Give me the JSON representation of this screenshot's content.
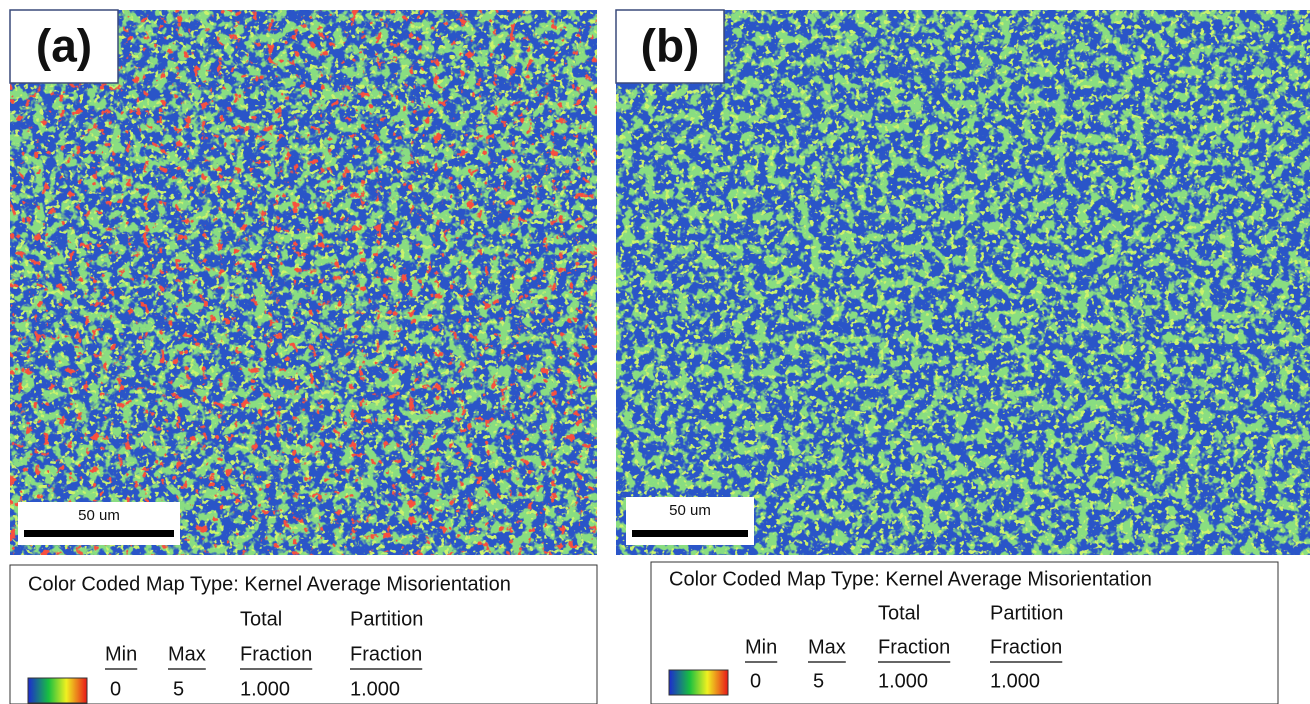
{
  "panels": [
    {
      "label": "(a)",
      "scale_bar": "50 um",
      "legend": {
        "title": "Color Coded Map Type: Kernel Average Misorientation",
        "header_top": [
          "Total",
          "Partition"
        ],
        "header": [
          "Min",
          "Max",
          "Fraction",
          "Fraction"
        ],
        "row": [
          "0",
          "5",
          "1.000",
          "1.000"
        ]
      }
    },
    {
      "label": "(b)",
      "scale_bar": "50 um",
      "legend": {
        "title": "Color Coded Map Type: Kernel Average Misorientation",
        "header_top": [
          "Total",
          "Partition"
        ],
        "header": [
          "Min",
          "Max",
          "Fraction",
          "Fraction"
        ],
        "row": [
          "0",
          "5",
          "1.000",
          "1.000"
        ]
      }
    }
  ]
}
